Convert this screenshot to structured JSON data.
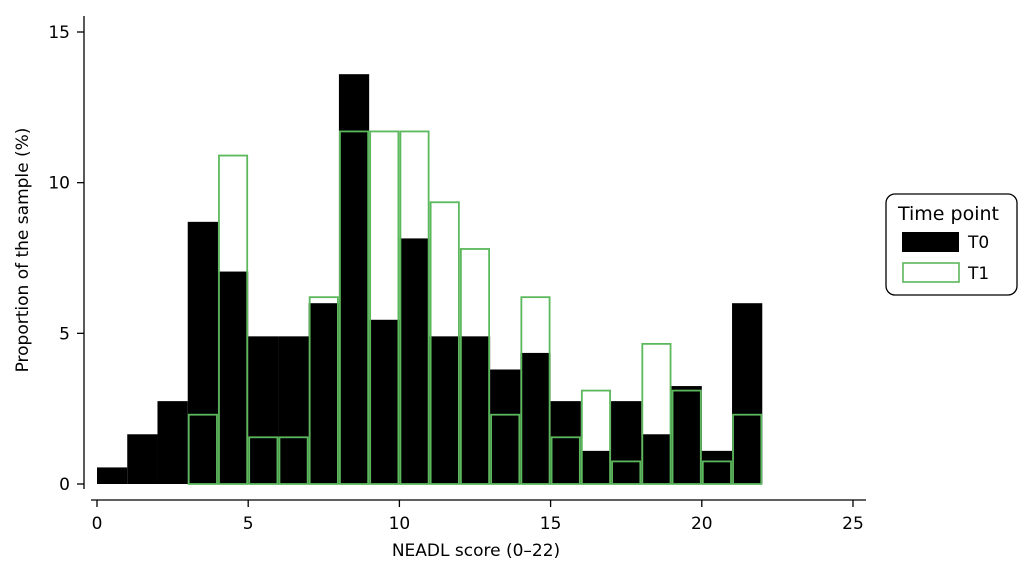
{
  "chart_data": {
    "type": "bar",
    "subtype": "overlaid-histogram",
    "xlabel": "NEADL score (0–22)",
    "ylabel": "Proportion of the sample (%)",
    "xlim": [
      0,
      25
    ],
    "ylim": [
      0,
      15
    ],
    "xticks": [
      "0",
      "5",
      "10",
      "15",
      "20",
      "25"
    ],
    "yticks": [
      "0",
      "5",
      "10",
      "15"
    ],
    "bin_width": 1,
    "bin_starts": [
      0,
      1,
      2,
      3,
      4,
      5,
      6,
      7,
      8,
      9,
      10,
      11,
      12,
      13,
      14,
      15,
      16,
      17,
      18,
      19,
      20,
      21
    ],
    "grid": false,
    "legend": {
      "title": "Time point",
      "position": "right"
    },
    "series": [
      {
        "name": "T0",
        "style": "filled",
        "color": "#000000",
        "values": [
          0.55,
          1.65,
          2.75,
          8.7,
          7.05,
          4.9,
          4.9,
          6.0,
          13.6,
          5.45,
          8.15,
          4.9,
          4.9,
          3.8,
          4.35,
          2.75,
          1.1,
          2.75,
          1.65,
          3.25,
          1.1,
          6.0
        ]
      },
      {
        "name": "T1",
        "style": "outline",
        "color": "#5cb85c",
        "values": [
          0,
          0,
          0,
          2.3,
          10.9,
          1.55,
          1.55,
          6.2,
          11.7,
          11.7,
          11.7,
          9.35,
          7.8,
          2.3,
          6.2,
          1.55,
          3.1,
          0.75,
          4.65,
          3.1,
          0.75,
          2.3
        ]
      }
    ]
  }
}
